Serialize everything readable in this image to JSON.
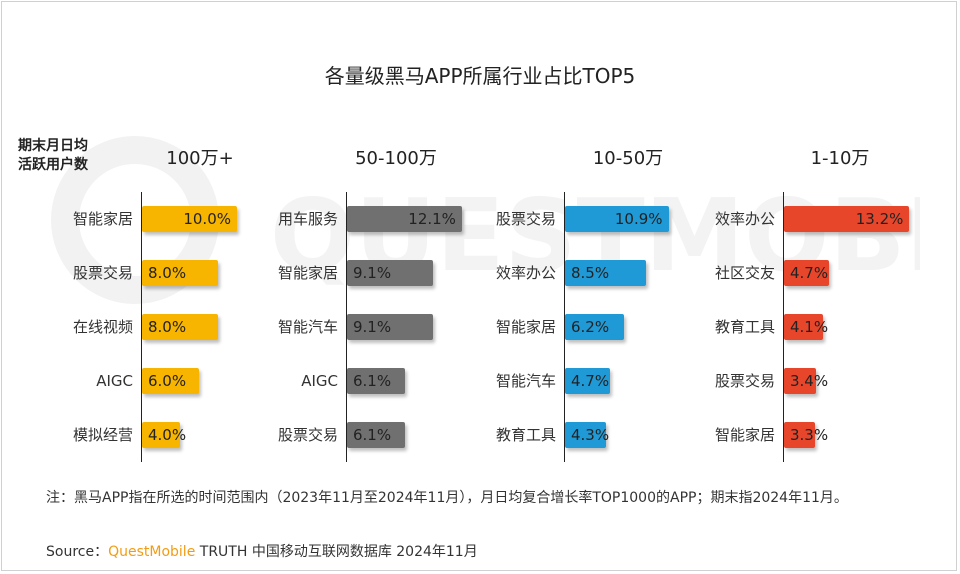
{
  "title": "各量级黑马APP所属行业占比TOP5",
  "row_header_lines": [
    "期末月日均",
    "活跃用户数"
  ],
  "colors": {
    "100万+": "#f7b500",
    "50-100万": "#707070",
    "10-50万": "#1f9ad6",
    "1-10万": "#e8462b"
  },
  "chart_data": [
    {
      "type": "bar",
      "orientation": "horizontal",
      "group": "100万+",
      "categories": [
        "智能家居",
        "股票交易",
        "在线视频",
        "AIGC",
        "模拟经营"
      ],
      "values": [
        10.0,
        8.0,
        8.0,
        6.0,
        4.0
      ],
      "labels": [
        "10.0%",
        "8.0%",
        "8.0%",
        "6.0%",
        "4.0%"
      ],
      "unit": "%"
    },
    {
      "type": "bar",
      "orientation": "horizontal",
      "group": "50-100万",
      "categories": [
        "用车服务",
        "智能家居",
        "智能汽车",
        "AIGC",
        "股票交易"
      ],
      "values": [
        12.1,
        9.1,
        9.1,
        6.1,
        6.1
      ],
      "labels": [
        "12.1%",
        "9.1%",
        "9.1%",
        "6.1%",
        "6.1%"
      ],
      "unit": "%"
    },
    {
      "type": "bar",
      "orientation": "horizontal",
      "group": "10-50万",
      "categories": [
        "股票交易",
        "效率办公",
        "智能家居",
        "智能汽车",
        "教育工具"
      ],
      "values": [
        10.9,
        8.5,
        6.2,
        4.7,
        4.3
      ],
      "labels": [
        "10.9%",
        "8.5%",
        "6.2%",
        "4.7%",
        "4.3%"
      ],
      "unit": "%"
    },
    {
      "type": "bar",
      "orientation": "horizontal",
      "group": "1-10万",
      "categories": [
        "效率办公",
        "社区交友",
        "教育工具",
        "股票交易",
        "智能家居"
      ],
      "values": [
        13.2,
        4.7,
        4.1,
        3.4,
        3.3
      ],
      "labels": [
        "13.2%",
        "4.7%",
        "4.1%",
        "3.4%",
        "3.3%"
      ],
      "unit": "%"
    }
  ],
  "note": "注：黑马APP指在所选的时间范围内（2023年11月至2024年11月），月日均复合增长率TOP1000的APP；期末指2024年11月。",
  "source": {
    "prefix": "Source：",
    "brand": "QuestMobile",
    "suffix": " TRUTH 中国移动互联网数据库 2024年11月"
  },
  "watermark_text": "QUESTMOBILE"
}
